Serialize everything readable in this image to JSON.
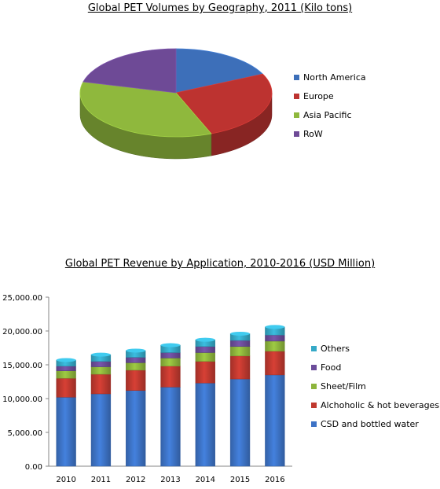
{
  "chart_data": [
    {
      "type": "pie",
      "title": "Global PET Volumes by Geography, 2011 (Kilo tons)",
      "legend_position": "right",
      "categories": [
        "North America",
        "Europe",
        "Asia Pacific",
        "RoW"
      ],
      "values": [
        18,
        26,
        35,
        21
      ],
      "colors": [
        "#3d6fb9",
        "#bd3330",
        "#8fb83d",
        "#6e4a96"
      ]
    },
    {
      "type": "bar",
      "stacked": true,
      "title": "Global PET Revenue by Application, 2010-2016 (USD Million)",
      "legend_position": "right",
      "categories": [
        "2010",
        "2011",
        "2012",
        "2013",
        "2014",
        "2015",
        "2016"
      ],
      "ylim": [
        0,
        25000
      ],
      "yticks": [
        "0.00",
        "5,000.00",
        "10,000.00",
        "15,000.00",
        "20,000.00",
        "25,000.00"
      ],
      "series": [
        {
          "name": "CSD and bottled water",
          "color": "#3d73c6",
          "values": [
            10200,
            10700,
            11200,
            11700,
            12300,
            12900,
            13500
          ]
        },
        {
          "name": "Alchoholic & hot beverages",
          "color": "#c0392f",
          "values": [
            2800,
            2900,
            3000,
            3100,
            3200,
            3400,
            3500
          ]
        },
        {
          "name": "Sheet/Film",
          "color": "#8db53c",
          "values": [
            1100,
            1100,
            1100,
            1200,
            1300,
            1400,
            1500
          ]
        },
        {
          "name": "Food",
          "color": "#6b4c9a",
          "values": [
            700,
            800,
            800,
            800,
            900,
            900,
            900
          ]
        },
        {
          "name": "Others",
          "color": "#35a9c7",
          "values": [
            900,
            1000,
            1000,
            1100,
            1000,
            1000,
            1200
          ]
        }
      ]
    }
  ]
}
